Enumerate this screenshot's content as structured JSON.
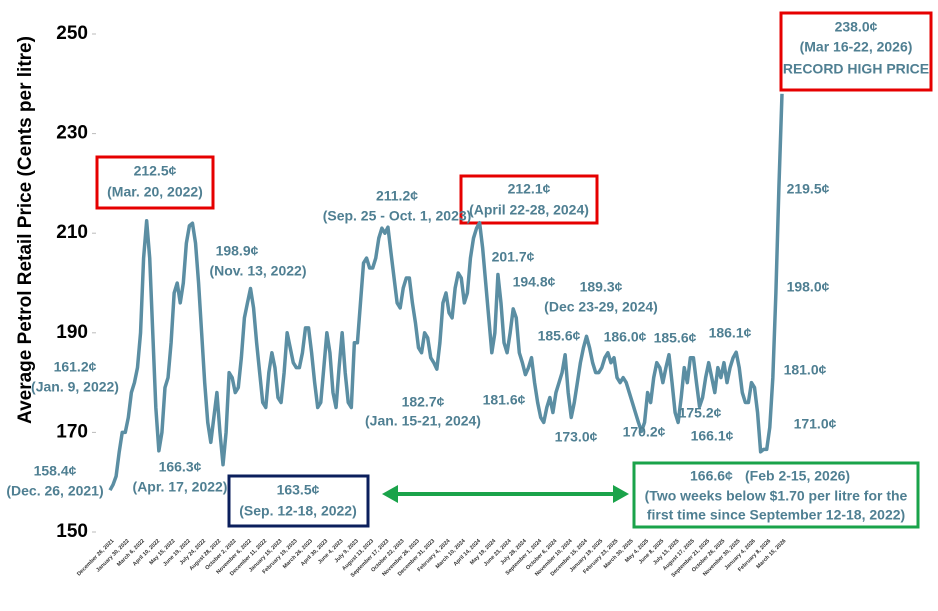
{
  "chart_data": {
    "type": "line",
    "y_label": "Average Petrol Retail Price (Cents per litre)",
    "categories": [
      "December 26, 2021",
      null,
      null,
      null,
      null,
      "January 30, 2022",
      null,
      null,
      null,
      null,
      "March 6, 2022",
      null,
      null,
      null,
      null,
      "April 10, 2022",
      null,
      null,
      null,
      null,
      "May 15, 2022",
      null,
      null,
      null,
      null,
      "June 19, 2022",
      null,
      null,
      null,
      null,
      "July 24, 2022",
      null,
      null,
      null,
      null,
      "August 28, 2022",
      null,
      null,
      null,
      null,
      "October 2, 2022",
      null,
      null,
      null,
      null,
      "November 6, 2022",
      null,
      null,
      null,
      null,
      "December 11, 2022",
      null,
      null,
      null,
      null,
      "January 15, 2023",
      null,
      null,
      null,
      null,
      "February 19, 2023",
      null,
      null,
      null,
      null,
      "March 26, 2023",
      null,
      null,
      null,
      null,
      "April 30, 2023",
      null,
      null,
      null,
      null,
      "June 4, 2023",
      null,
      null,
      null,
      null,
      "July 9, 2023",
      null,
      null,
      null,
      null,
      "August 13, 2023",
      null,
      null,
      null,
      null,
      "September 17, 2023",
      null,
      null,
      null,
      null,
      "October 22, 2023",
      null,
      null,
      null,
      null,
      "November 26, 2023",
      null,
      null,
      null,
      null,
      "December 31, 2023",
      null,
      null,
      null,
      null,
      "February 4, 2024",
      null,
      null,
      null,
      null,
      "March 10, 2024",
      null,
      null,
      null,
      null,
      "April 14, 2024",
      null,
      null,
      null,
      null,
      "May 19, 2024",
      null,
      null,
      null,
      null,
      "June 23, 2024",
      null,
      null,
      null,
      null,
      "July 28, 2024",
      null,
      null,
      null,
      null,
      "September 1, 2024",
      null,
      null,
      null,
      null,
      "October 6, 2024",
      null,
      null,
      null,
      null,
      "November 10, 2024",
      null,
      null,
      null,
      null,
      "December 15, 2024",
      null,
      null,
      null,
      null,
      "January 19, 2025",
      null,
      null,
      null,
      null,
      "February 23, 2025",
      null,
      null,
      null,
      null,
      "March 30, 2025",
      null,
      null,
      null,
      null,
      "May 4, 2025",
      null,
      null,
      null,
      null,
      "June 8, 2025",
      null,
      null,
      null,
      null,
      "July 13, 2025",
      null,
      null,
      null,
      null,
      "August 17, 2025",
      null,
      null,
      null,
      null,
      "September 21, 2025",
      null,
      null,
      null,
      null,
      "October 26, 2025",
      null,
      null,
      null,
      null,
      "November 30, 2025",
      null,
      null,
      null,
      null,
      "January 4, 2026",
      null,
      null,
      null,
      null,
      "February 8, 2026",
      null,
      null,
      null,
      null,
      "March 15, 2026"
    ],
    "values": [
      158.4,
      159.5,
      161.2,
      166,
      170,
      170,
      173,
      178,
      180,
      183,
      190,
      205,
      212.5,
      205,
      190,
      175,
      166.3,
      170,
      179,
      181,
      188,
      198,
      200,
      196,
      200,
      208,
      211.5,
      212,
      208,
      200,
      190,
      180,
      172,
      168,
      173,
      178,
      170,
      163.5,
      170,
      182,
      181,
      178,
      179,
      185,
      193,
      196,
      198.9,
      195,
      188,
      182,
      176,
      175,
      182,
      186,
      183,
      177,
      176,
      182,
      190,
      187,
      184,
      183,
      183,
      186,
      191,
      191,
      186,
      180,
      175,
      176,
      183,
      190,
      186,
      178,
      175,
      183,
      190,
      182,
      176,
      175,
      188,
      188,
      196,
      204,
      205,
      203,
      203,
      205,
      209,
      211,
      210,
      211.2,
      206,
      201,
      196,
      195,
      199,
      201,
      201,
      196,
      192,
      187,
      186,
      190,
      189,
      185,
      184,
      182.7,
      188,
      196,
      198,
      194,
      193,
      199,
      202,
      201,
      196,
      198,
      205,
      209,
      211,
      212.1,
      207,
      200,
      193,
      186,
      190,
      201.7,
      196,
      188,
      186,
      190,
      194.8,
      193,
      186,
      184,
      181.6,
      183,
      185,
      180,
      176,
      173,
      172,
      175,
      177,
      174,
      178,
      180,
      182,
      185.6,
      178,
      173.0,
      176,
      180,
      184,
      187,
      189.3,
      187,
      184,
      182,
      182,
      183,
      185,
      186.0,
      184,
      185,
      181,
      180,
      181,
      180,
      178,
      176,
      174,
      172,
      170.2,
      172,
      178,
      176,
      181,
      184,
      183,
      180,
      183,
      185.6,
      180,
      174,
      172,
      177,
      183,
      180,
      185,
      185,
      180,
      175.2,
      177,
      181,
      184,
      181,
      178,
      183,
      181,
      184,
      180,
      183,
      185,
      186.1,
      183,
      178,
      176,
      176,
      180,
      179,
      174,
      166.1,
      166.6,
      166.6,
      171.0,
      181.0,
      198.0,
      219.5,
      238.0
    ],
    "value_labels": [
      "158.4¢",
      null,
      "161.2¢",
      null,
      null,
      null,
      null,
      null,
      null,
      null,
      null,
      null,
      "212.5¢",
      null,
      null,
      null,
      "166.3¢",
      null,
      null,
      null,
      null,
      null,
      null,
      null,
      null,
      null,
      null,
      null,
      null,
      null,
      null,
      null,
      null,
      null,
      null,
      null,
      null,
      "163.5¢",
      null,
      null,
      null,
      null,
      null,
      null,
      null,
      null,
      "198.9¢",
      null,
      null,
      null,
      null,
      null,
      null,
      null,
      null,
      null,
      null,
      null,
      null,
      null,
      null,
      null,
      null,
      null,
      null,
      null,
      null,
      null,
      null,
      null,
      null,
      null,
      null,
      null,
      null,
      null,
      null,
      null,
      null,
      null,
      null,
      null,
      null,
      null,
      null,
      null,
      null,
      null,
      null,
      null,
      null,
      "211.2¢",
      null,
      null,
      null,
      null,
      null,
      null,
      null,
      null,
      null,
      null,
      null,
      null,
      null,
      null,
      null,
      "182.7¢",
      null,
      null,
      null,
      null,
      null,
      null,
      null,
      null,
      null,
      null,
      null,
      null,
      null,
      "212.1¢",
      null,
      null,
      null,
      null,
      null,
      "201.7¢",
      null,
      null,
      null,
      null,
      "194.8¢",
      null,
      null,
      null,
      "181.6¢",
      null,
      null,
      null,
      null,
      null,
      null,
      null,
      null,
      null,
      null,
      null,
      null,
      "185.6¢",
      null,
      "173.0¢",
      null,
      null,
      null,
      null,
      "189.3¢",
      null,
      null,
      null,
      null,
      null,
      null,
      "186.0¢",
      null,
      null,
      null,
      null,
      null,
      null,
      null,
      null,
      null,
      null,
      "170.2¢",
      null,
      null,
      null,
      null,
      null,
      null,
      null,
      null,
      "185.6¢",
      null,
      null,
      null,
      null,
      null,
      null,
      null,
      null,
      null,
      "175.2¢",
      null,
      null,
      null,
      null,
      null,
      null,
      null,
      null,
      null,
      null,
      null,
      "186.1¢",
      null,
      null,
      null,
      null,
      null,
      null,
      null,
      "166.1¢",
      "166.6¢",
      null,
      "171.0¢",
      "181.0¢",
      "198.0¢",
      "219.5¢",
      "238.0¢"
    ],
    "annotations": [
      "(Dec. 26, 2021)",
      "(Jan. 9, 2022)",
      "(Mar. 20, 2022)",
      "(Apr. 17, 2022)",
      "(Sep. 12-18, 2022)",
      "(Nov. 13, 2022)",
      "(Sep. 25 - Oct. 1, 2023)",
      "(Jan. 15-21, 2024)",
      "(April 22-28, 2024)",
      "(Dec 23-29, 2024)",
      "(Feb 2-15, 2026)",
      "(Two weeks below $1.70 per litre for the",
      "first time since September 12-18, 2022)",
      "(Mar 16-22, 2026)",
      "RECORD HIGH PRICE"
    ],
    "color": "#5b8ea3",
    "ylim": [
      150,
      250
    ],
    "yticks": [
      150,
      170,
      190,
      210,
      230,
      250
    ],
    "grid": false
  }
}
